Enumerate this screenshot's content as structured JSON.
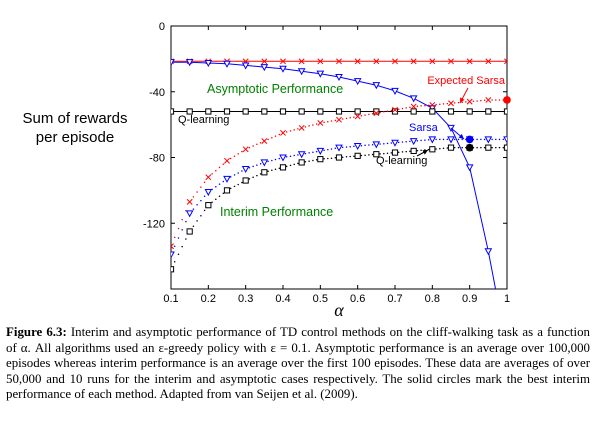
{
  "chart_data": {
    "type": "line",
    "xlabel": "α",
    "ylabel_lines": [
      "Sum of rewards",
      "per episode"
    ],
    "x": [
      0.1,
      0.15,
      0.2,
      0.25,
      0.3,
      0.35,
      0.4,
      0.45,
      0.5,
      0.55,
      0.6,
      0.65,
      0.7,
      0.75,
      0.8,
      0.85,
      0.9,
      0.95,
      1.0
    ],
    "xlim": [
      0.1,
      1.0
    ],
    "ylim": [
      -160,
      0
    ],
    "x_ticks": [
      0.1,
      0.2,
      0.3,
      0.4,
      0.5,
      0.6,
      0.7,
      0.8,
      0.9,
      1
    ],
    "y_ticks": [
      -120,
      -80,
      -40,
      0
    ],
    "series": [
      {
        "name": "Expected Sarsa",
        "phase": "asymptotic",
        "color": "#ff0000",
        "marker": "x",
        "line": "solid",
        "values": [
          -21.5,
          -21.5,
          -21.5,
          -21.5,
          -21.5,
          -21.5,
          -21.5,
          -21.5,
          -21.5,
          -21.5,
          -21.5,
          -21.5,
          -21.5,
          -21.5,
          -21.5,
          -21.5,
          -21.5,
          -21.5,
          -21.5
        ]
      },
      {
        "name": "Sarsa",
        "phase": "asymptotic",
        "color": "#0000ff",
        "marker": "triangle-down",
        "line": "solid",
        "values": [
          -22,
          -22,
          -22.5,
          -23,
          -24,
          -25,
          -26,
          -27.5,
          -29,
          -31,
          -33.5,
          -36,
          -39.5,
          -44,
          -50,
          -62,
          -86,
          -137,
          null
        ]
      },
      {
        "name": "Q-learning",
        "phase": "asymptotic",
        "color": "#000000",
        "marker": "square",
        "line": "solid",
        "values": [
          -52,
          -52,
          -52,
          -52,
          -52,
          -52,
          -52,
          -52,
          -52,
          -52,
          -52,
          -52,
          -52,
          -52,
          -52,
          -52,
          -52,
          -52,
          -52
        ]
      },
      {
        "name": "Expected Sarsa",
        "phase": "interim",
        "color": "#ff0000",
        "marker": "x",
        "line": "dotted",
        "values": [
          -134,
          -107,
          -92,
          -82,
          -75,
          -70,
          -65,
          -62,
          -59,
          -57,
          -55,
          -53,
          -51,
          -49,
          -48,
          -47,
          -46,
          -45,
          -45
        ]
      },
      {
        "name": "Sarsa",
        "phase": "interim",
        "color": "#0000ff",
        "marker": "triangle-down",
        "line": "dotted",
        "values": [
          -139,
          -114,
          -101,
          -93,
          -87,
          -83,
          -80,
          -78,
          -76,
          -74,
          -73,
          -72,
          -71,
          -70,
          -69,
          -69,
          -69,
          -69,
          -69
        ]
      },
      {
        "name": "Q-learning",
        "phase": "interim",
        "color": "#000000",
        "marker": "square",
        "line": "dotted",
        "values": [
          -148,
          -125,
          -109,
          -100,
          -94,
          -89,
          -86,
          -83,
          -81,
          -80,
          -79,
          -78,
          -77,
          -76,
          -75,
          -74,
          -74,
          -74,
          -74
        ]
      }
    ],
    "best_points": [
      {
        "name": "Expected Sarsa",
        "x": 1.0,
        "y": -45,
        "color": "#ff0000"
      },
      {
        "name": "Sarsa",
        "x": 0.9,
        "y": -69,
        "color": "#0000ff"
      },
      {
        "name": "Q-learning",
        "x": 0.9,
        "y": -74,
        "color": "#000000"
      }
    ],
    "annotations": {
      "asymptotic": {
        "text": "Asymptotic Performance",
        "color": "#008000"
      },
      "interim": {
        "text": "Interim Performance",
        "color": "#008000"
      },
      "expected_sarsa": {
        "text": "Expected Sarsa",
        "color": "#ff0000"
      },
      "sarsa": {
        "text": "Sarsa",
        "color": "#0000ff"
      },
      "qlearning_top": {
        "text": "Q-learning",
        "color": "#000000"
      },
      "qlearning_bottom": {
        "text": "Q-learning",
        "color": "#000000"
      }
    }
  },
  "caption": {
    "label": "Figure 6.3:",
    "text": "Interim and asymptotic performance of TD control methods on the cliff-walking task as a function of α. All algorithms used an ε-greedy policy with ε = 0.1. Asymptotic performance is an average over 100,000 episodes whereas interim performance is an average over the first 100 episodes. These data are averages of over 50,000 and 10 runs for the interim and asymptotic cases respectively. The solid circles mark the best interim performance of each method. Adapted from van Seijen et al. (2009)."
  }
}
